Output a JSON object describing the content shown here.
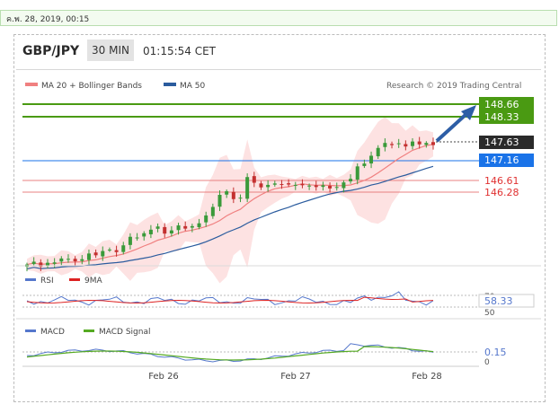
{
  "header": {
    "date_text": "ค.พ. 28, 2019, 00:15",
    "pair": "GBP/JPY",
    "timeframe": "30 MIN",
    "time": "01:15:54 CET"
  },
  "legend": {
    "ma20": "MA 20 + Bollinger Bands",
    "ma50": "MA 50",
    "credit": "Research © 2019 Trading Central",
    "rsi": "RSI",
    "rsi_ma": "9MA",
    "macd": "MACD",
    "macd_signal": "MACD Signal"
  },
  "levels": {
    "resistance": [
      "148.66",
      "148.33"
    ],
    "last": "147.63",
    "pivot": "147.16",
    "support": [
      "146.61",
      "146.28"
    ]
  },
  "indicator_labels": {
    "rsi_value": "58.33",
    "rsi_axis": [
      "70",
      "50"
    ],
    "macd_value": "0.15",
    "macd_axis": "0"
  },
  "x_labels": [
    "Feb 26",
    "Feb 27",
    "Feb 28"
  ],
  "colors": {
    "resistance": "#4a9a12",
    "pivot": "#1a73e8",
    "support": "#e03030",
    "last": "#2a2a2a",
    "ma20": "#f08080",
    "ma50": "#2b5c9e",
    "bollinger_fill": "#fde2e2",
    "candle_up": "#3a9a3a",
    "candle_down": "#c43030",
    "rsi": "#5577cc",
    "rsi_ma": "#dd2222",
    "macd": "#5577cc",
    "macd_signal": "#55aa22"
  },
  "chart_data": {
    "type": "candlestick",
    "series": [
      {
        "name": "GBP/JPY",
        "values": [
          144.24,
          144.32,
          144.18,
          144.29,
          144.3,
          144.41,
          144.4,
          144.33,
          144.39,
          144.55,
          144.5,
          144.62,
          144.66,
          144.59,
          144.78,
          145.02,
          145.0,
          145.12,
          145.22,
          145.31,
          145.11,
          145.2,
          145.34,
          145.25,
          145.32,
          145.4,
          145.62,
          145.86,
          146.2,
          146.3,
          146.08,
          146.12,
          146.7,
          146.54,
          146.41,
          146.48,
          146.52,
          146.5,
          146.49,
          146.48,
          146.47,
          146.46,
          146.42,
          146.47,
          146.38,
          146.42,
          146.55,
          146.65,
          147.0,
          147.08,
          147.3,
          147.52,
          147.66,
          147.6,
          147.65,
          147.56,
          147.7,
          147.62,
          147.66,
          147.6
        ]
      },
      {
        "name": "MA 20"
      },
      {
        "name": "MA 50"
      },
      {
        "name": "RSI"
      },
      {
        "name": "9MA"
      },
      {
        "name": "MACD"
      },
      {
        "name": "MACD Signal"
      }
    ],
    "x_ticks": [
      "Feb 26",
      "Feb 27",
      "Feb 28"
    ],
    "annotations": [
      "148.66",
      "148.33",
      "147.63",
      "147.16",
      "146.61",
      "146.28"
    ]
  }
}
